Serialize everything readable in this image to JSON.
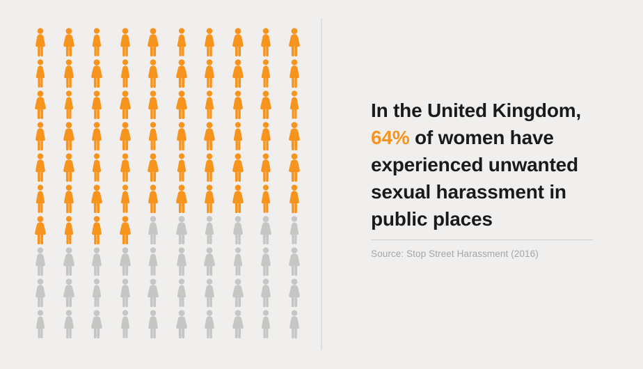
{
  "background_color": "#f0efee",
  "chart_data": {
    "type": "pictogram",
    "title": "In the United Kingdom, 64% of women have experienced unwanted sexual harassment in public places",
    "value_percent": 64,
    "total_units": 100,
    "highlighted_units": 64,
    "grid": {
      "rows": 10,
      "columns": 10
    },
    "unit_icon": "woman-silhouette-icon",
    "colors": {
      "highlighted": "#f7941d",
      "muted": "#c6c6c5"
    },
    "source": "Source: Stop Street Harassment (2016)"
  },
  "headline": {
    "line1": "In the United Kingdom,",
    "line2_accent": "64%",
    "line2_rest": " of women have",
    "line3": "experienced unwanted",
    "line4": "sexual harassment in",
    "line5": "public places",
    "text_color": "#1a1a1a",
    "accent_color": "#f7941d"
  },
  "source": {
    "label": "Source: Stop Street Harassment (2016)"
  }
}
